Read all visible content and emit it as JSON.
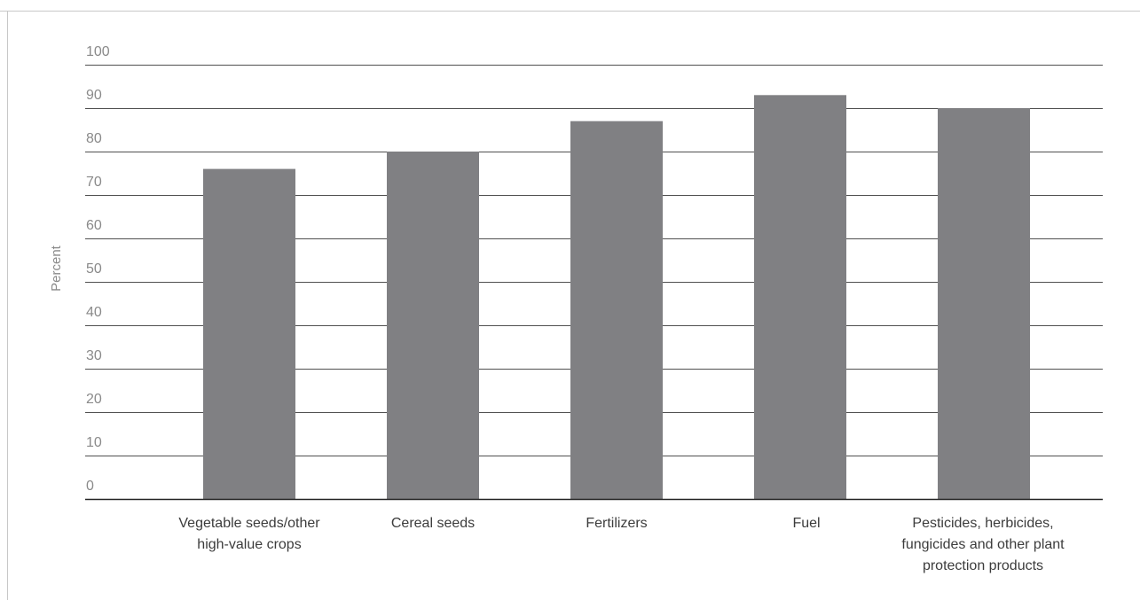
{
  "chart_data": {
    "type": "bar",
    "title": "",
    "xlabel": "",
    "ylabel": "Percent",
    "ylim": [
      0,
      100
    ],
    "yticks": [
      0,
      10,
      20,
      30,
      40,
      50,
      60,
      70,
      80,
      90,
      100
    ],
    "grid": true,
    "legend": "none",
    "bar_color": "#808083",
    "categories": [
      "Vegetable seeds/other high-value crops",
      "Cereal seeds",
      "Fertilizers",
      "Fuel",
      "Pesticides, herbicides, fungicides and other plant protection products"
    ],
    "category_label_lines": [
      [
        "Vegetable seeds/other",
        "high-value crops"
      ],
      [
        "Cereal seeds"
      ],
      [
        "Fertilizers"
      ],
      [
        "Fuel"
      ],
      [
        "Pesticides, herbicides,",
        "fungicides and other plant",
        "protection products"
      ]
    ],
    "values": [
      76,
      80,
      87,
      93,
      90
    ]
  }
}
